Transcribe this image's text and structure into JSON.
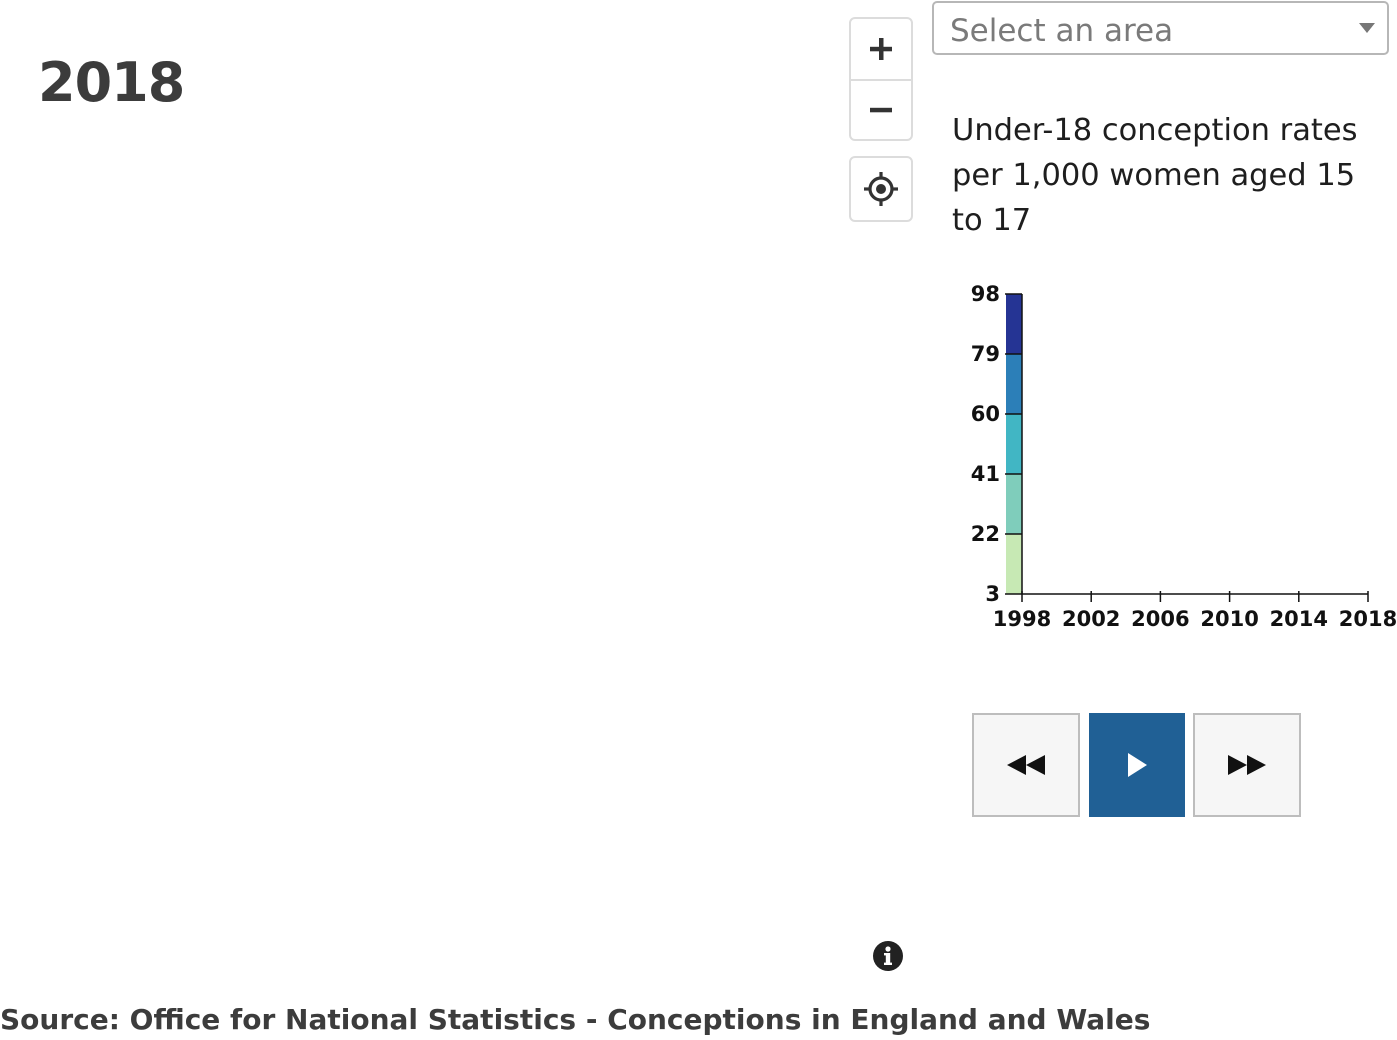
{
  "year": "2018",
  "controls": {
    "zoom_in_icon": "plus-icon",
    "zoom_out_icon": "minus-icon",
    "locate_icon": "crosshair-locate-icon"
  },
  "area_select": {
    "placeholder": "Select an area",
    "caret_icon": "caret-down-icon"
  },
  "legend": {
    "title": "Under-18 conception rates per 1,000 women aged 15 to 17",
    "breaks": [
      "98",
      "79",
      "60",
      "41",
      "22",
      "3"
    ],
    "break_values": [
      98,
      79,
      60,
      41,
      22,
      3
    ],
    "colors": [
      "#c7e9b4",
      "#7fcdbb",
      "#41b6c4",
      "#2c7fb8",
      "#253494"
    ]
  },
  "chart_data": {
    "type": "line",
    "x_ticks": [
      "1998",
      "2002",
      "2006",
      "2010",
      "2014",
      "2018"
    ],
    "y_ticks": [
      3,
      22,
      41,
      60,
      79,
      98
    ],
    "xlim": [
      1998,
      2018
    ],
    "ylim": [
      3,
      98
    ],
    "series": []
  },
  "playback": {
    "back_icon": "rewind-icon",
    "play_icon": "play-icon",
    "forward_icon": "fast-forward-icon",
    "play_color": "#206095"
  },
  "info_icon": "info-icon",
  "source": "Source: Office for National Statistics - Conceptions in England and Wales"
}
